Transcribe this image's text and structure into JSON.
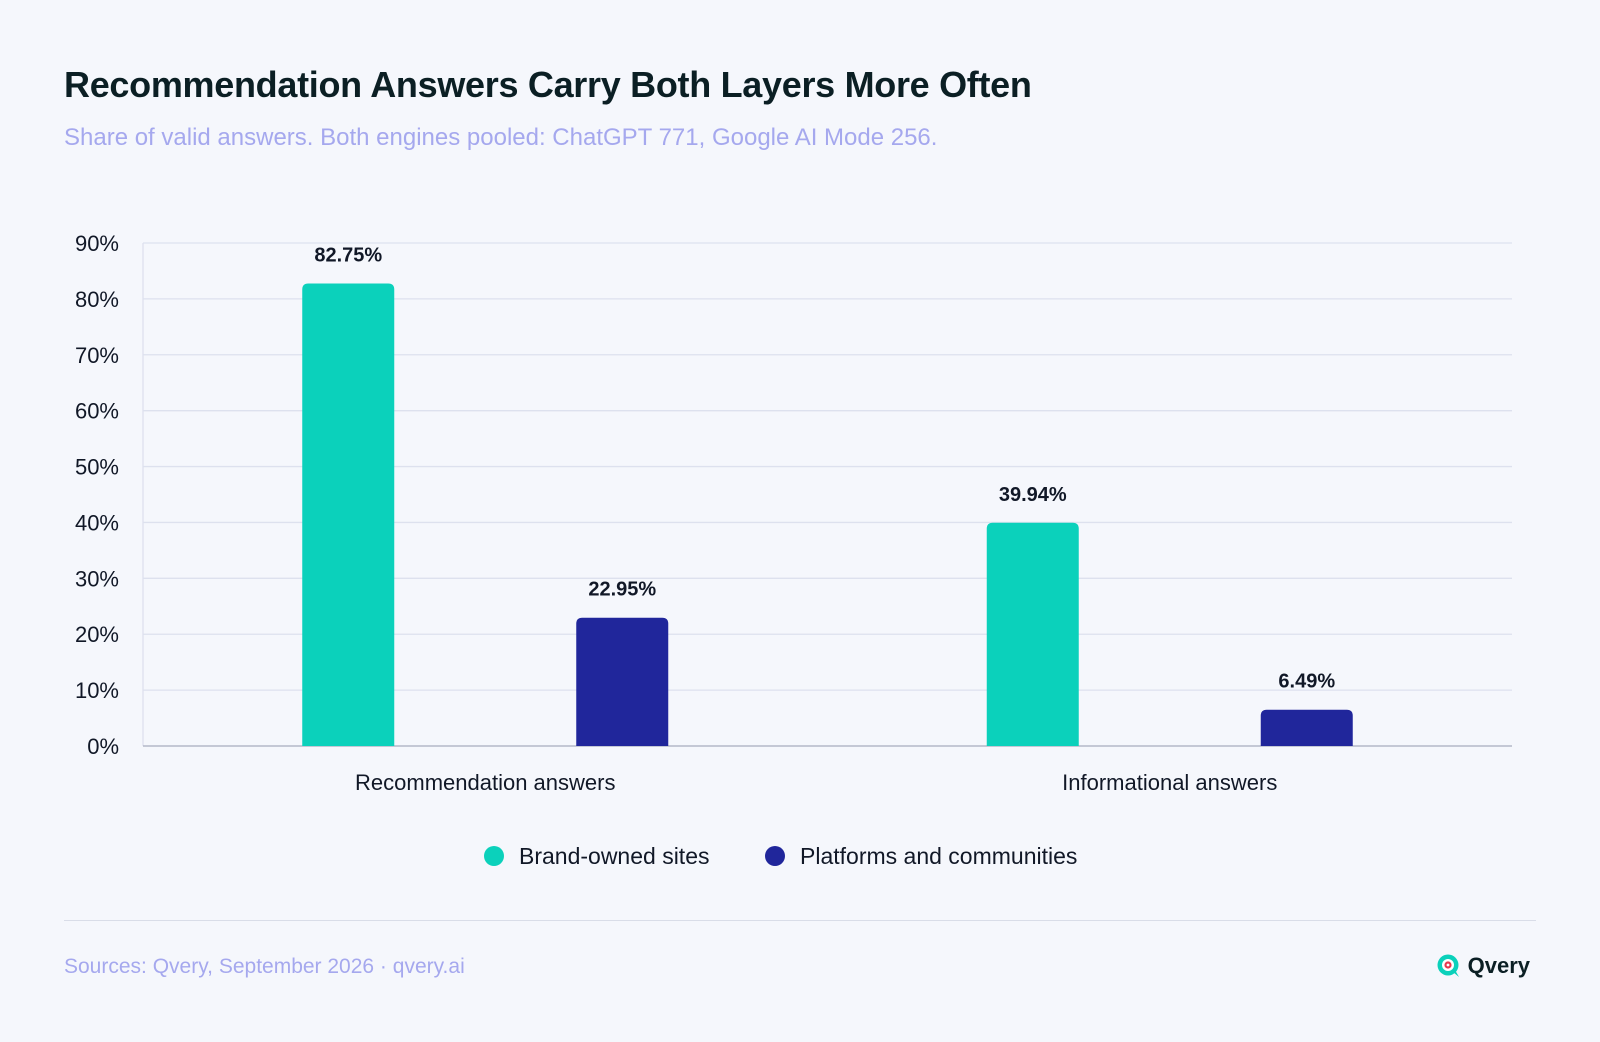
{
  "header": {
    "title": "Recommendation Answers Carry Both Layers More Often",
    "subtitle": "Share of valid answers. Both engines pooled: ChatGPT 771, Google AI Mode 256."
  },
  "chart_data": {
    "type": "bar",
    "categories": [
      "Recommendation answers",
      "Informational answers"
    ],
    "series": [
      {
        "name": "Brand-owned sites",
        "color": "#0bd1bb",
        "values": [
          82.75,
          39.94
        ],
        "labels": [
          "82.75%",
          "39.94%"
        ]
      },
      {
        "name": "Platforms and communities",
        "color": "#20269b",
        "values": [
          22.95,
          6.49
        ],
        "labels": [
          "22.95%",
          "6.49%"
        ]
      }
    ],
    "ylim": [
      0,
      90
    ],
    "yticks": [
      "0%",
      "10%",
      "20%",
      "30%",
      "40%",
      "50%",
      "60%",
      "70%",
      "80%",
      "90%"
    ],
    "grid": true,
    "legend": "bottom-center"
  },
  "footer": {
    "source": "Sources: Qvery, September 2026 · qvery.ai",
    "brand": "Qvery",
    "brand_icon": "qvery-logo-icon"
  }
}
